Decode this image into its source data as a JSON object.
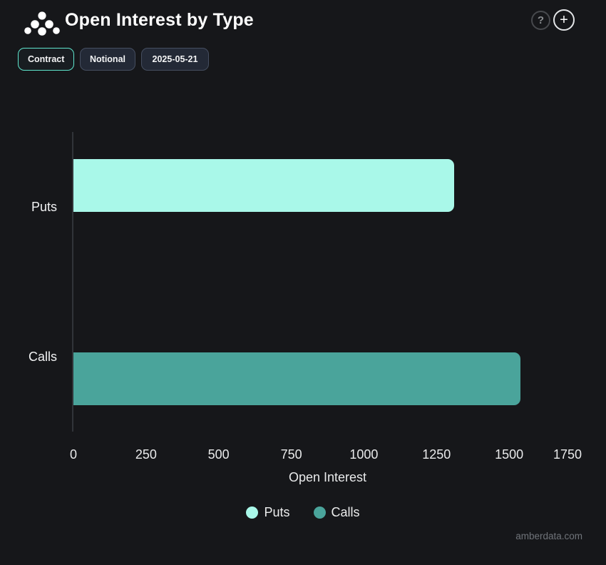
{
  "header": {
    "title": "Open Interest by Type",
    "help_glyph": "?",
    "add_glyph": "+"
  },
  "toolbar": {
    "buttons": [
      {
        "label": "Contract",
        "active": true
      },
      {
        "label": "Notional",
        "active": false
      },
      {
        "label": "2025-05-21",
        "active": false
      }
    ]
  },
  "chart_data": {
    "type": "bar",
    "orientation": "horizontal",
    "title": "Open Interest by Type",
    "categories": [
      "Puts",
      "Calls"
    ],
    "values": [
      1310,
      1540
    ],
    "series": [
      {
        "name": "Puts",
        "value": 1310,
        "color": "#a9f8e9"
      },
      {
        "name": "Calls",
        "value": 1540,
        "color": "#4aa49b"
      }
    ],
    "xlabel": "Open Interest",
    "ylabel": "",
    "xlim": [
      0,
      1750
    ],
    "xticks": [
      0,
      250,
      500,
      750,
      1000,
      1250,
      1500,
      1750
    ],
    "grid": false,
    "legend_position": "bottom",
    "legend": [
      {
        "label": "Puts",
        "color": "#a9f8e9"
      },
      {
        "label": "Calls",
        "color": "#4aa49b"
      }
    ]
  },
  "footer": {
    "watermark": "amberdata.com"
  },
  "colors": {
    "background": "#16171a",
    "accent_teal": "#5fe6cd",
    "puts_bar": "#a9f8e9",
    "calls_bar": "#4aa49b",
    "axis_line": "#313439",
    "text_primary": "#f2f3f4",
    "text_muted": "#70747a"
  }
}
